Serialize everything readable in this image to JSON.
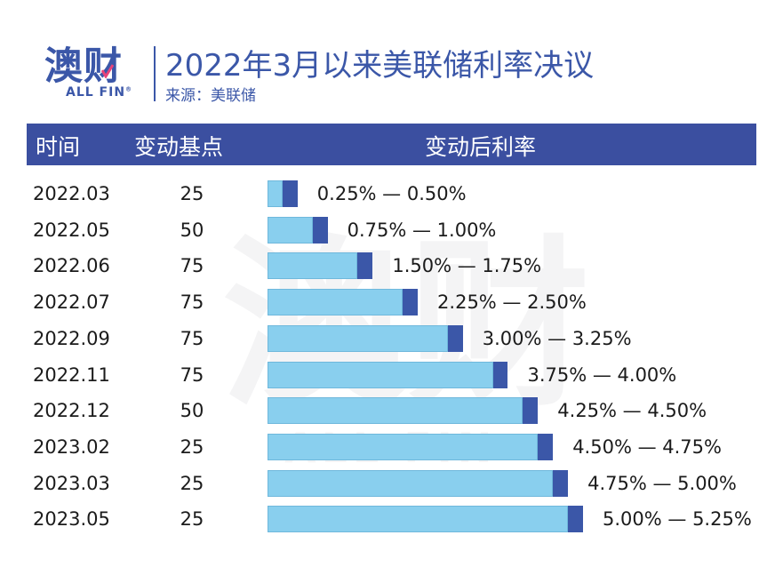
{
  "header": {
    "logo_text": "澳财",
    "logo_sub": "ALL FIN",
    "logo_reg": "®",
    "title": "2022年3月以来美联储利率决议",
    "source": "来源：美联储"
  },
  "table": {
    "col_date": "时间",
    "col_bp": "变动基点",
    "col_rate": "变动后利率"
  },
  "watermark": {
    "main": "澳财",
    "sub": "ALL FIN"
  },
  "colors": {
    "accent": "#3b57a8",
    "header_bg": "#3b4fa0",
    "bar_base": "#89cfee",
    "bar_increment": "#3b57a8"
  },
  "chart_data": {
    "type": "bar",
    "title": "2022年3月以来美联储利率决议",
    "categories": [
      "2022.03",
      "2022.05",
      "2022.06",
      "2022.07",
      "2022.09",
      "2022.11",
      "2022.12",
      "2023.02",
      "2023.03",
      "2023.05"
    ],
    "bp_changes": [
      "25",
      "50",
      "75",
      "75",
      "75",
      "75",
      "50",
      "25",
      "25",
      "25"
    ],
    "rate_labels": [
      "0.25% — 0.50%",
      "0.75% — 1.00%",
      "1.50% — 1.75%",
      "2.25% — 2.50%",
      "3.00% — 3.25%",
      "3.75% — 4.00%",
      "4.25% — 4.50%",
      "4.50% — 4.75%",
      "4.75% — 5.00%",
      "5.00% — 5.25%"
    ],
    "series": [
      {
        "values": [
          0.25,
          0.75,
          1.5,
          2.25,
          3.0,
          3.75,
          4.25,
          4.5,
          4.75,
          5.0
        ]
      },
      {
        "values": [
          0.5,
          1.0,
          1.75,
          2.5,
          3.25,
          4.0,
          4.5,
          4.75,
          5.0,
          5.25
        ]
      }
    ],
    "xlim": [
      0,
      5.25
    ],
    "orientation": "horizontal",
    "grid": false,
    "legend": false
  }
}
